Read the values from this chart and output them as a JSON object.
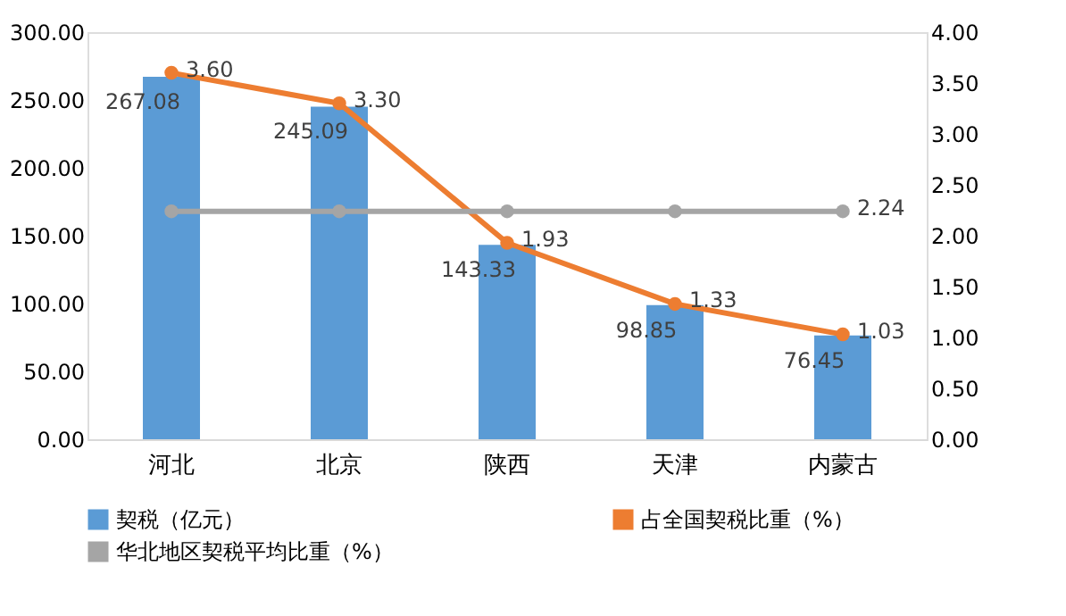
{
  "chart_data": {
    "type": "bar",
    "categories": [
      "河北",
      "北京",
      "陕西",
      "天津",
      "内蒙古"
    ],
    "series": [
      {
        "name": "契税（亿元）",
        "color": "#5b9bd5",
        "values": [
          267.08,
          245.09,
          143.33,
          98.85,
          76.45
        ],
        "value_labels": [
          "267.08",
          "245.09",
          "143.33",
          "98.85",
          "76.45"
        ]
      },
      {
        "name": "占全国契税比重（%）",
        "type": "line",
        "axis": "y2",
        "color": "#ed7d31",
        "values": [
          3.6,
          3.3,
          1.93,
          1.33,
          1.03
        ],
        "value_labels": [
          "3.60",
          "3.30",
          "1.93",
          "1.33",
          "1.03"
        ]
      },
      {
        "name": "华北地区契税平均比重（%）",
        "type": "line",
        "axis": "y2",
        "color": "#a5a5a5",
        "values": [
          2.24,
          2.24,
          2.24,
          2.24,
          2.24
        ],
        "value_labels": [
          null,
          null,
          null,
          null,
          "2.24"
        ]
      }
    ],
    "ylim": [
      0,
      300
    ],
    "yticks": [
      {
        "value": 0,
        "label": "0.00"
      },
      {
        "value": 50,
        "label": "50.00"
      },
      {
        "value": 100,
        "label": "100.00"
      },
      {
        "value": 150,
        "label": "150.00"
      },
      {
        "value": 200,
        "label": "200.00"
      },
      {
        "value": 250,
        "label": "250.00"
      },
      {
        "value": 300,
        "label": "300.00"
      }
    ],
    "y2lim": [
      0,
      4
    ],
    "y2ticks": [
      {
        "value": 0,
        "label": "0.00"
      },
      {
        "value": 0.5,
        "label": "0.50"
      },
      {
        "value": 1,
        "label": "1.00"
      },
      {
        "value": 1.5,
        "label": "1.50"
      },
      {
        "value": 2,
        "label": "2.00"
      },
      {
        "value": 2.5,
        "label": "2.50"
      },
      {
        "value": 3,
        "label": "3.00"
      },
      {
        "value": 3.5,
        "label": "3.50"
      },
      {
        "value": 4,
        "label": "4.00"
      }
    ],
    "grid": false,
    "legend": "bottom",
    "marker": "circle",
    "line_style": "solid"
  }
}
